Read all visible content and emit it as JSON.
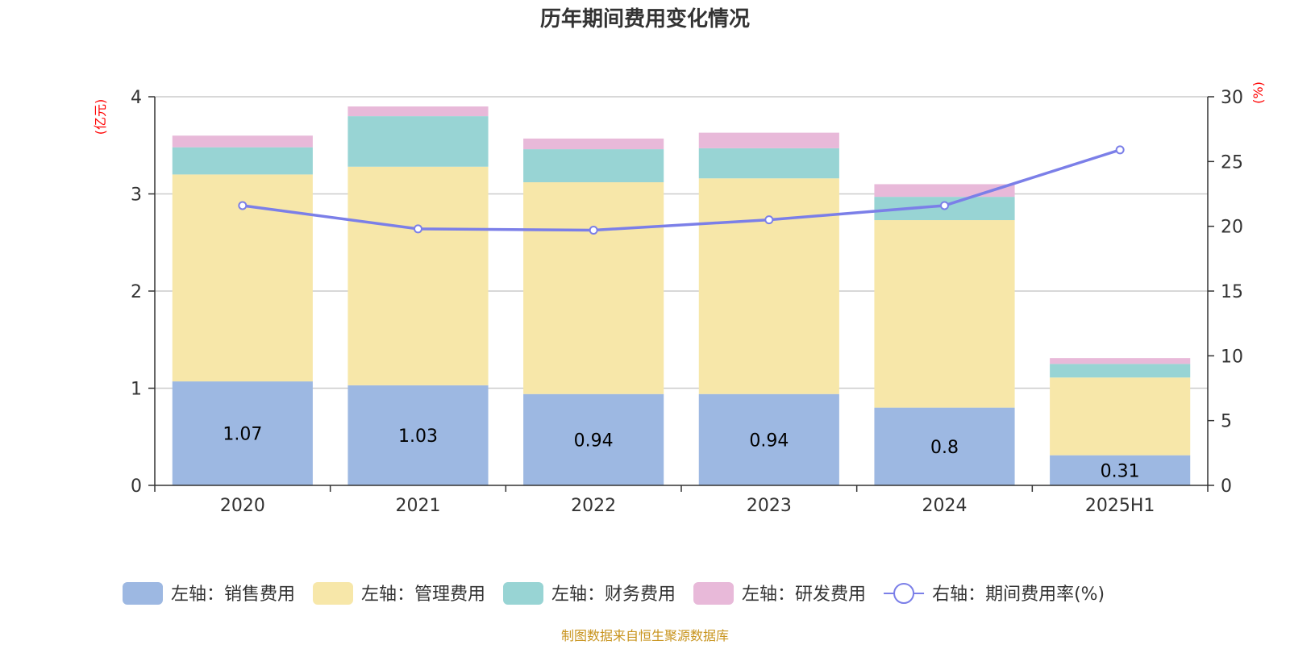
{
  "chart_data": {
    "type": "bar",
    "title": "历年期间费用变化情况",
    "categories": [
      "2020",
      "2021",
      "2022",
      "2023",
      "2024",
      "2025H1"
    ],
    "y_left": {
      "unit": "(亿元)",
      "range": [
        0,
        4
      ],
      "ticks": [
        "0",
        "1",
        "2",
        "3",
        "4"
      ]
    },
    "y_right": {
      "unit": "(%)",
      "range": [
        0,
        30
      ],
      "ticks": [
        "0",
        "5",
        "10",
        "15",
        "20",
        "25",
        "30"
      ]
    },
    "series": [
      {
        "name": "左轴：销售费用",
        "axis": "left",
        "type": "bar",
        "stack": "total",
        "color": "#9db8e2",
        "values": [
          1.07,
          1.03,
          0.94,
          0.94,
          0.8,
          0.31
        ],
        "labels": [
          "1.07",
          "1.03",
          "0.94",
          "0.94",
          "0.8",
          "0.31"
        ]
      },
      {
        "name": "左轴：管理费用",
        "axis": "left",
        "type": "bar",
        "stack": "total",
        "color": "#f7e7a9",
        "values": [
          2.13,
          2.25,
          2.18,
          2.22,
          1.93,
          0.8
        ]
      },
      {
        "name": "左轴：财务费用",
        "axis": "left",
        "type": "bar",
        "stack": "total",
        "color": "#98d4d4",
        "values": [
          0.28,
          0.52,
          0.34,
          0.31,
          0.24,
          0.14
        ]
      },
      {
        "name": "左轴：研发费用",
        "axis": "left",
        "type": "bar",
        "stack": "total",
        "color": "#e8b9d9",
        "values": [
          0.12,
          0.1,
          0.11,
          0.16,
          0.13,
          0.06
        ]
      },
      {
        "name": "右轴：期间费用率(%)",
        "axis": "right",
        "type": "line",
        "color": "#7b7fe8",
        "values": [
          21.6,
          19.8,
          19.7,
          20.5,
          21.6,
          25.9
        ]
      }
    ],
    "grid": true,
    "legend_position": "bottom"
  },
  "source_note": "制图数据来自恒生聚源数据库"
}
